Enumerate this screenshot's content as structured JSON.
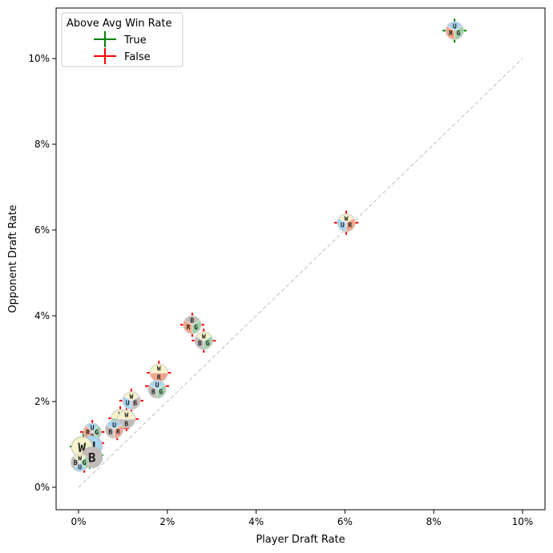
{
  "chart_data": {
    "type": "scatter",
    "xlabel": "Player Draft Rate",
    "ylabel": "Opponent Draft Rate",
    "xlim": [
      -0.5,
      10.5
    ],
    "ylim": [
      -0.5,
      11.0
    ],
    "xticks": [
      0,
      2,
      4,
      6,
      8,
      10
    ],
    "yticks": [
      0,
      2,
      4,
      6,
      8,
      10
    ],
    "xtick_labels": [
      "0%",
      "2%",
      "4%",
      "6%",
      "8%",
      "10%"
    ],
    "ytick_labels": [
      "0%",
      "2%",
      "4%",
      "6%",
      "8%",
      "10%"
    ],
    "grid": false,
    "reference_line": {
      "from": [
        0,
        0
      ],
      "to": [
        10,
        10
      ],
      "style": "dashed",
      "color": "#c0c0c0"
    },
    "legend": {
      "title": "Above Avg Win Rate",
      "placement": "top-left",
      "entries": [
        {
          "label": "True",
          "color": "#008000"
        },
        {
          "label": "False",
          "color": "#ff0000"
        }
      ]
    },
    "color_map": {
      "W": "#f8f3c8",
      "U": "#a9d4ee",
      "B": "#c4bcb8",
      "R": "#f0a58a",
      "G": "#9ccfa8"
    },
    "points": [
      {
        "x": 8.47,
        "y": 10.65,
        "colors": [
          "U",
          "G",
          "R"
        ],
        "above_avg": true
      },
      {
        "x": 6.03,
        "y": 6.17,
        "colors": [
          "W",
          "R",
          "U"
        ],
        "above_avg": false
      },
      {
        "x": 2.56,
        "y": 3.79,
        "colors": [
          "B",
          "G",
          "R"
        ],
        "above_avg": false
      },
      {
        "x": 2.82,
        "y": 3.42,
        "colors": [
          "W",
          "G",
          "B"
        ],
        "above_avg": false
      },
      {
        "x": 1.81,
        "y": 2.67,
        "colors": [
          "W",
          "R"
        ],
        "above_avg": false
      },
      {
        "x": 1.77,
        "y": 2.36,
        "colors": [
          "U",
          "G",
          "B"
        ],
        "above_avg": false
      },
      {
        "x": 1.19,
        "y": 2.02,
        "colors": [
          "W",
          "B",
          "U"
        ],
        "above_avg": false
      },
      {
        "x": 0.94,
        "y": 1.61,
        "colors": [
          "W",
          "G"
        ],
        "above_avg": false
      },
      {
        "x": 1.08,
        "y": 1.59,
        "colors": [
          "W",
          "B"
        ],
        "above_avg": false
      },
      {
        "x": 0.87,
        "y": 1.38,
        "colors": [
          "U",
          "R",
          "B"
        ],
        "above_avg": false
      },
      {
        "x": 0.31,
        "y": 1.29,
        "colors": [
          "U",
          "G",
          "B",
          "R"
        ],
        "above_avg": false
      },
      {
        "x": 0.27,
        "y": 1.03,
        "colors": [
          "U"
        ],
        "above_avg": false
      },
      {
        "x": 0.11,
        "y": 0.95,
        "colors": [
          "W"
        ],
        "above_avg": true
      },
      {
        "x": 0.25,
        "y": 0.75,
        "colors": [
          "B"
        ],
        "above_avg": true
      },
      {
        "x": 0.13,
        "y": 0.62,
        "colors": [
          "W",
          "G",
          "U",
          "B"
        ],
        "above_avg": false
      }
    ]
  }
}
